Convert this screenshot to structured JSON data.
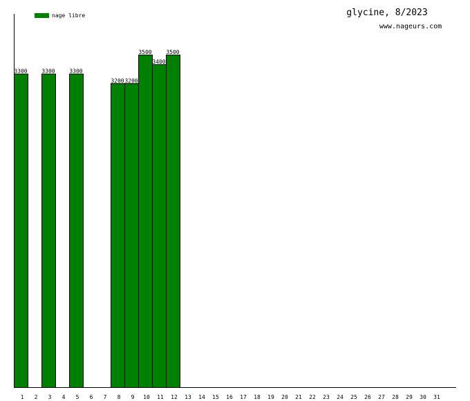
{
  "chart_data": {
    "type": "bar",
    "title": "glycine, 8/2023",
    "subtitle": "www.nageurs.com",
    "categories": [
      "1",
      "2",
      "3",
      "4",
      "5",
      "6",
      "7",
      "8",
      "9",
      "10",
      "11",
      "12",
      "13",
      "14",
      "15",
      "16",
      "17",
      "18",
      "19",
      "20",
      "21",
      "22",
      "23",
      "24",
      "25",
      "26",
      "27",
      "28",
      "29",
      "30",
      "31"
    ],
    "series": [
      {
        "name": "nage libre",
        "color": "#008000",
        "values": [
          3300,
          null,
          3300,
          null,
          3300,
          null,
          null,
          3200,
          3200,
          3500,
          3400,
          3500,
          null,
          null,
          null,
          null,
          null,
          null,
          null,
          null,
          null,
          null,
          null,
          null,
          null,
          null,
          null,
          null,
          null,
          null,
          null
        ]
      }
    ],
    "ylim": [
      0,
      3930
    ]
  }
}
